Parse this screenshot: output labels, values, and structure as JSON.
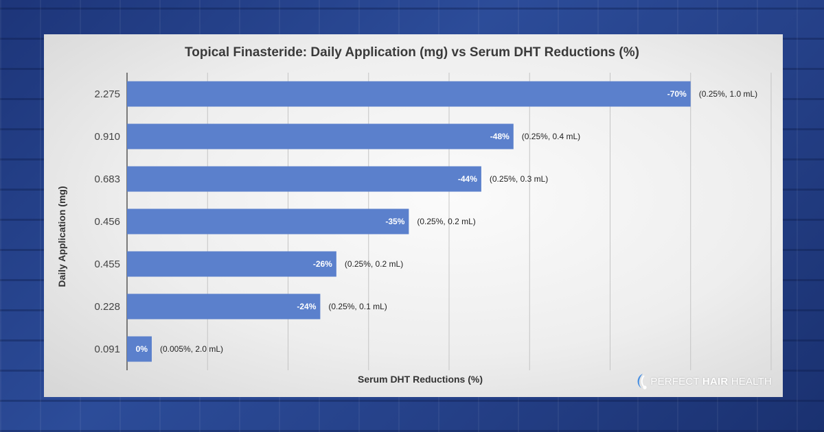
{
  "brand": {
    "part1": "PERFECT ",
    "part2": "HAIR",
    "part3": " HEALTH",
    "icon": "hair-follicle-icon"
  },
  "colors": {
    "bar": "#5b80cc",
    "background": "#223f84",
    "panel": "#f2f2f2"
  },
  "chart_data": {
    "type": "bar",
    "orientation": "horizontal",
    "title": "Topical Finasteride: Daily Application (mg) vs Serum DHT Reductions (%)",
    "xlabel": "Serum DHT Reductions (%)",
    "ylabel": "Daily Application (mg)",
    "categories": [
      "2.275",
      "0.910",
      "0.683",
      "0.456",
      "0.455",
      "0.228",
      "0.091"
    ],
    "values": [
      -70,
      -48,
      -44,
      -35,
      -26,
      -24,
      0
    ],
    "value_labels": [
      "-70%",
      "-48%",
      "-44%",
      "-35%",
      "-26%",
      "-24%",
      "0%"
    ],
    "annotations": [
      "(0.25%, 1.0 mL)",
      "(0.25%, 0.4 mL)",
      "(0.25%, 0.3 mL)",
      "(0.25%, 0.2 mL)",
      "(0.25%, 0.2 mL)",
      "(0.25%, 0.1 mL)",
      "(0.005%, 2.0 mL)"
    ],
    "xlim": [
      0,
      -80
    ],
    "grid": true,
    "legend": false
  }
}
